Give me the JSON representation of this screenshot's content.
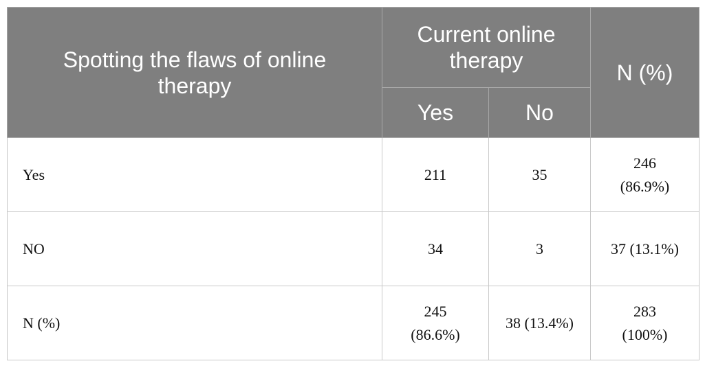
{
  "table": {
    "header": {
      "row_label": "Spotting the flaws of online therapy",
      "group": "Current online therapy",
      "subcolumns": [
        "Yes",
        "No"
      ],
      "total": "N (%)"
    },
    "rows": [
      [
        "Yes",
        "211",
        "35",
        "246 (86.9%)"
      ],
      [
        "NO",
        "34",
        "3",
        "37 (13.1%)"
      ],
      [
        "N (%)",
        "245 (86.6%)",
        "38 (13.4%)",
        "283 (100%)"
      ]
    ]
  }
}
